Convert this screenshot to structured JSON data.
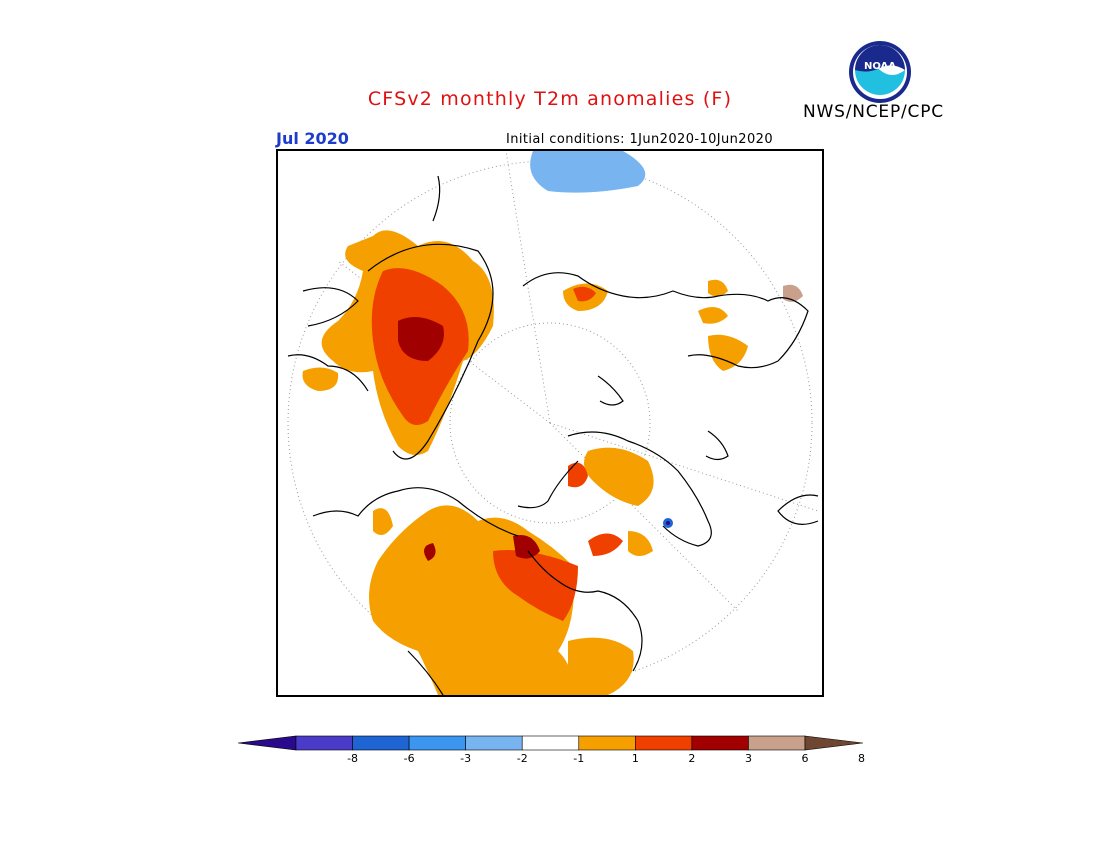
{
  "header": {
    "title": "CFSv2 monthly T2m anomalies (F)",
    "agency": "NWS/NCEP/CPC",
    "logo_text": "NOAA",
    "month": "Jul 2020",
    "initial_conditions": "Initial conditions: 1Jun2020-10Jun2020"
  },
  "colors": {
    "title": "#e01010",
    "month": "#1e3ccc",
    "bins": [
      "#2a0a8c",
      "#4a3cc8",
      "#1e64d2",
      "#3c96f0",
      "#78b4f0",
      "#ffffff",
      "#f5a000",
      "#f04000",
      "#a00000",
      "#c8a08c",
      "#6e4632"
    ]
  },
  "legend": {
    "ticks": [
      "-8",
      "-6",
      "-3",
      "-2",
      "-1",
      "1",
      "2",
      "3",
      "6",
      "8"
    ]
  }
}
